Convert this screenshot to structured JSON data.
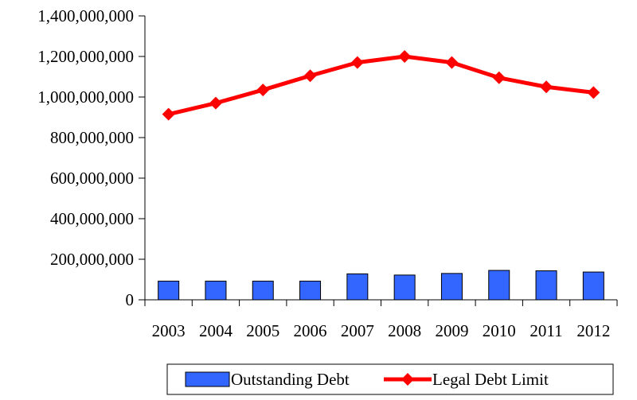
{
  "chart_data": {
    "type": "bar+line",
    "categories": [
      "2003",
      "2004",
      "2005",
      "2006",
      "2007",
      "2008",
      "2009",
      "2010",
      "2011",
      "2012"
    ],
    "series": [
      {
        "name": "Outstanding Debt",
        "type": "bar",
        "color": "#3366ff",
        "values": [
          92000000,
          92000000,
          92000000,
          92000000,
          128000000,
          122000000,
          130000000,
          145000000,
          143000000,
          137000000
        ]
      },
      {
        "name": "Legal Debt Limit",
        "type": "line",
        "color": "#ff0000",
        "values": [
          915000000,
          970000000,
          1035000000,
          1105000000,
          1170000000,
          1200000000,
          1170000000,
          1095000000,
          1050000000,
          1022000000
        ]
      }
    ],
    "ylim": [
      0,
      1400000000
    ],
    "yticks": [
      0,
      200000000,
      400000000,
      600000000,
      800000000,
      1000000000,
      1200000000,
      1400000000
    ],
    "ytick_labels": [
      "0",
      "200,000,000",
      "400,000,000",
      "600,000,000",
      "800,000,000",
      "1,000,000,000",
      "1,200,000,000",
      "1,400,000,000"
    ],
    "title": "",
    "xlabel": "",
    "ylabel": "",
    "grid": false,
    "legend_placement": "bottom-center"
  }
}
